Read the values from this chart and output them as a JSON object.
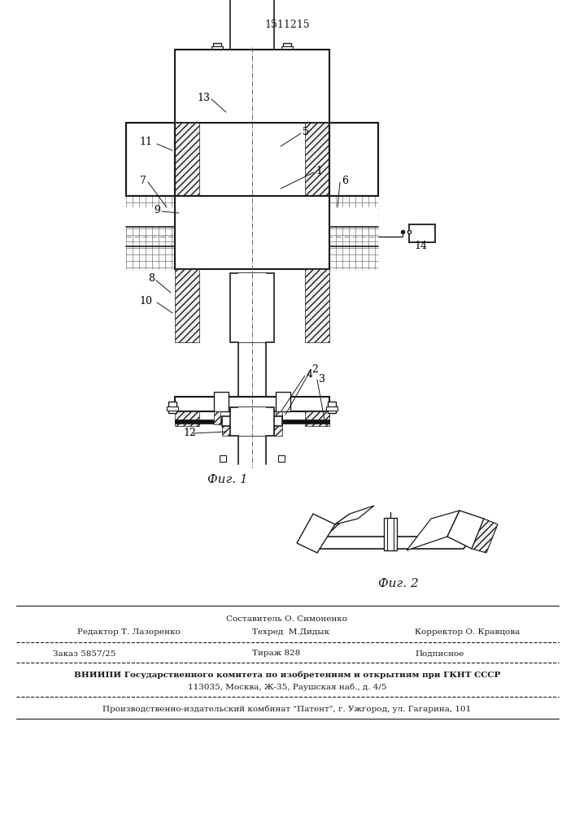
{
  "patent_number": "1511215",
  "fig1_caption": "Фиг. 1",
  "fig2_caption": "Фиг. 2",
  "bg_color": "#ffffff",
  "line_color": "#1a1a1a",
  "labels": [
    "1",
    "2",
    "3",
    "4",
    "5",
    "6",
    "7",
    "8",
    "9",
    "10",
    "11",
    "12",
    "13",
    "14"
  ],
  "footer_sestavitel": "Составитель О. Симоненко",
  "footer_editor": "Редактор Т. Лазоренко",
  "footer_techred": "Техред  М.Дидык",
  "footer_corrector": "Корректор О. Кравцова",
  "footer_order": "Заказ 5857/25",
  "footer_tirazh": "Тираж 828",
  "footer_podpisnoe": "Подписное",
  "footer_vniip": "ВНИИПИ Государственного комитета по изобретениям и открытиям при ГКНТ СССР",
  "footer_address": "113035, Москва, Ж-35, Раушская наб., д. 4/5",
  "footer_patent": "Производственно-издательский комбинат \"Патент\", г. Ужгород, ул. Гагарина, 101"
}
